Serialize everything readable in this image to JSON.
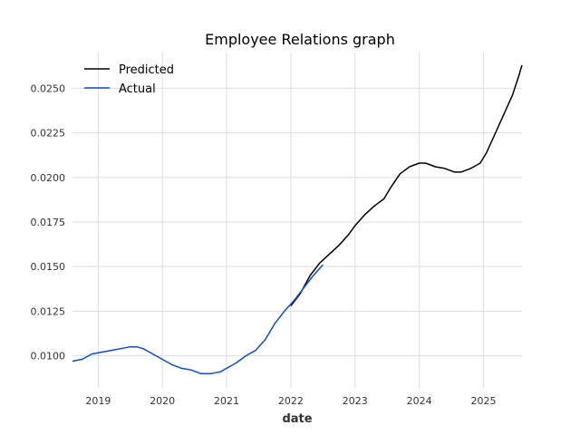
{
  "chart_data": {
    "type": "line",
    "title": "Employee Relations graph",
    "xlabel": "date",
    "ylabel": "",
    "xlim": [
      2018.6,
      2025.6
    ],
    "ylim": [
      0.0082,
      0.027
    ],
    "xticks": [
      2019,
      2020,
      2021,
      2022,
      2023,
      2024,
      2025
    ],
    "xtick_labels": [
      "2019",
      "2020",
      "2021",
      "2022",
      "2023",
      "2024",
      "2025"
    ],
    "yticks": [
      0.01,
      0.0125,
      0.015,
      0.0175,
      0.02,
      0.0225,
      0.025
    ],
    "ytick_labels": [
      "0.0100",
      "0.0125",
      "0.0150",
      "0.0175",
      "0.0200",
      "0.0225",
      "0.0250"
    ],
    "grid": true,
    "legend_position": "top-left",
    "series": [
      {
        "name": "Predicted",
        "color": "#000000",
        "x": [
          2022.0,
          2022.15,
          2022.3,
          2022.45,
          2022.6,
          2022.75,
          2022.9,
          2023.0,
          2023.15,
          2023.3,
          2023.45,
          2023.55,
          2023.7,
          2023.85,
          2024.0,
          2024.1,
          2024.25,
          2024.4,
          2024.55,
          2024.65,
          2024.8,
          2024.95,
          2025.05,
          2025.15,
          2025.3,
          2025.45,
          2025.55,
          2025.6
        ],
        "y": [
          0.0128,
          0.0135,
          0.0145,
          0.0152,
          0.0157,
          0.0162,
          0.0168,
          0.0173,
          0.0179,
          0.0184,
          0.0188,
          0.0194,
          0.0202,
          0.0206,
          0.0208,
          0.0208,
          0.0206,
          0.0205,
          0.0203,
          0.0203,
          0.0205,
          0.0208,
          0.0214,
          0.0222,
          0.0234,
          0.0246,
          0.0257,
          0.0263
        ]
      },
      {
        "name": "Actual",
        "color": "#0b49e6",
        "x": [
          2018.6,
          2018.75,
          2018.9,
          2019.05,
          2019.2,
          2019.35,
          2019.5,
          2019.6,
          2019.7,
          2019.85,
          2020.0,
          2020.15,
          2020.3,
          2020.45,
          2020.6,
          2020.75,
          2020.9,
          2021.0,
          2021.15,
          2021.3,
          2021.45,
          2021.6,
          2021.75,
          2021.9,
          2022.05,
          2022.2,
          2022.35,
          2022.5
        ],
        "y": [
          0.0097,
          0.0098,
          0.0101,
          0.0102,
          0.0103,
          0.0104,
          0.0105,
          0.0105,
          0.0104,
          0.0101,
          0.0098,
          0.0095,
          0.0093,
          0.0092,
          0.009,
          0.009,
          0.0091,
          0.0093,
          0.0096,
          0.01,
          0.0103,
          0.0109,
          0.0118,
          0.0125,
          0.0131,
          0.0138,
          0.0145,
          0.0151
        ]
      }
    ]
  }
}
